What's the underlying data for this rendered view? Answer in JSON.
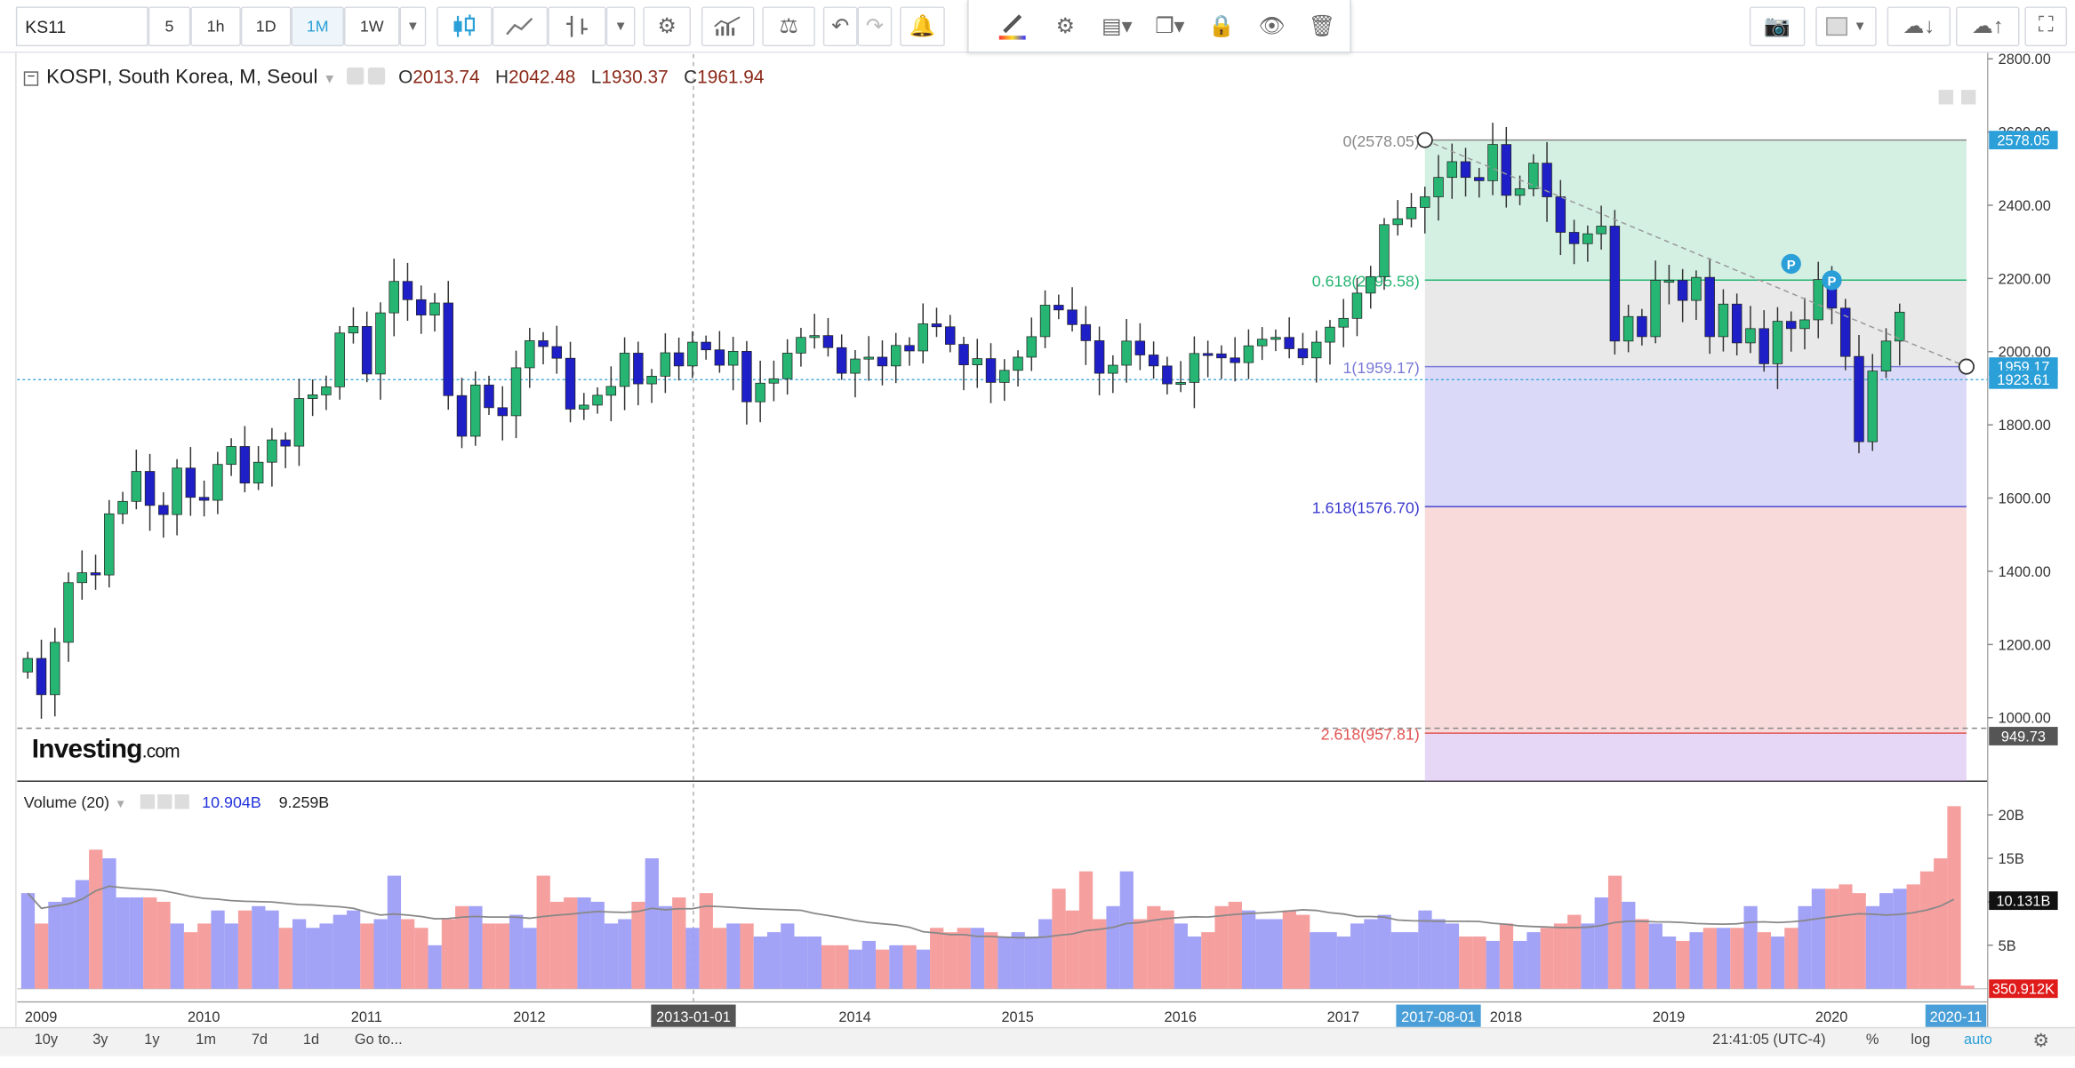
{
  "toolbar": {
    "symbol": "KS11",
    "intervals": [
      "5",
      "1h",
      "1D",
      "1M",
      "1W"
    ],
    "active_interval": "1M"
  },
  "legend": {
    "title": "KOSPI, South Korea, M, Seoul",
    "open_label": "O",
    "open": "2013.74",
    "high_label": "H",
    "high": "2042.48",
    "low_label": "L",
    "low": "1930.37",
    "close_label": "C",
    "close": "1961.94"
  },
  "volume_legend": {
    "title": "Volume (20)",
    "value1": "10.904B",
    "value2": "9.259B"
  },
  "logo": {
    "main": "Investing",
    "suffix": ".com"
  },
  "bottom": {
    "ranges": [
      "10y",
      "3y",
      "1y",
      "1m",
      "7d",
      "1d"
    ],
    "goto": "Go to...",
    "time": "21:41:05 (UTC-4)",
    "percent": "%",
    "log": "log",
    "auto": "auto"
  },
  "colors": {
    "up": "#26b572",
    "down": "#1f1fc8",
    "vol_up": "#f59a9a",
    "vol_down": "#9d9df5",
    "fib_top": "#26b572",
    "fib_mid": "#7b7bd9",
    "fib_low": "#e05555",
    "price_badge": "#2a9fd8"
  },
  "chart_data": {
    "type": "candlestick",
    "x_start": "2009-01",
    "x_step": "1 month",
    "ylim": [
      830,
      2800
    ],
    "price_ticks": [
      1000,
      1200,
      1400,
      1600,
      1800,
      2000,
      2200,
      2400,
      2600,
      2800
    ],
    "price_tick_labels": [
      "1000.00",
      "1200.00",
      "1400.00",
      "1600.00",
      "1800.00",
      "2000.00",
      "2200.00",
      "2400.00",
      "2600.00",
      "2800.00"
    ],
    "x_tick_labels": [
      {
        "label": "2009",
        "month": 0
      },
      {
        "label": "2010",
        "month": 12
      },
      {
        "label": "2011",
        "month": 24
      },
      {
        "label": "2012",
        "month": 36
      },
      {
        "label": "2013",
        "month": 48
      },
      {
        "label": "2014",
        "month": 60
      },
      {
        "label": "2015",
        "month": 72
      },
      {
        "label": "2016",
        "month": 84
      },
      {
        "label": "2017",
        "month": 96
      },
      {
        "label": "2018",
        "month": 108
      },
      {
        "label": "2019",
        "month": 120
      },
      {
        "label": "2020",
        "month": 132
      }
    ],
    "x_badges": [
      {
        "label": "2013-01-01",
        "month": 48
      },
      {
        "label": "2017-08-01",
        "month": 103
      },
      {
        "label": "2020-11",
        "month": 142
      }
    ],
    "closes": [
      1162,
      1063,
      1206,
      1369,
      1396,
      1390,
      1557,
      1591,
      1673,
      1580,
      1555,
      1682,
      1602,
      1594,
      1692,
      1741,
      1641,
      1698,
      1759,
      1742,
      1872,
      1882,
      1904,
      2051,
      2069,
      1939,
      2106,
      2192,
      2142,
      2100,
      2133,
      1880,
      1769,
      1909,
      1847,
      1825,
      1956,
      2030,
      2014,
      1982,
      1843,
      1854,
      1881,
      1905,
      1996,
      1912,
      1933,
      1997,
      1961,
      2026,
      2005,
      1963,
      2001,
      1863,
      1914,
      1926,
      1996,
      2039,
      2044,
      2011,
      1941,
      1980,
      1985,
      1961,
      2017,
      2002,
      2076,
      2068,
      2020,
      1964,
      1981,
      1916,
      1949,
      1985,
      2041,
      2127,
      2114,
      2074,
      2030,
      1941,
      1963,
      2029,
      1991,
      1961,
      1912,
      1916,
      1995,
      1994,
      1983,
      1970,
      2016,
      2034,
      2039,
      2008,
      1983,
      2026,
      2067,
      2091,
      2160,
      2205,
      2347,
      2363,
      2394,
      2423,
      2476,
      2519,
      2476,
      2467,
      2566,
      2427,
      2445,
      2515,
      2423,
      2326,
      2295,
      2322,
      2343,
      2029,
      2096,
      2041,
      2195,
      2195,
      2140,
      2203,
      2041,
      2130,
      2024,
      2063,
      1967,
      2083,
      2063,
      2087,
      2197,
      2119,
      1987,
      1754,
      1947,
      2029,
      2108
    ],
    "fib_levels": [
      {
        "ratio": "0",
        "price": 2578.05,
        "label": "0(2578.05)",
        "color": "#888888"
      },
      {
        "ratio": "0.618",
        "price": 2195.58,
        "label": "0.618(2195.58)",
        "color": "#26b572"
      },
      {
        "ratio": "1",
        "price": 1959.17,
        "label": "1(1959.17)",
        "color": "#7b7bd9"
      },
      {
        "ratio": "1.618",
        "price": 1576.7,
        "label": "1.618(1576.70)",
        "color": "#3b3bd0"
      },
      {
        "ratio": "2.618",
        "price": 957.81,
        "label": "2.618(957.81)",
        "color": "#e05555"
      }
    ],
    "fib_start_month": 103,
    "trend_line": {
      "from_month": 103,
      "from_price": 2578.05,
      "to_month": 142,
      "to_price": 1959.17
    },
    "pivot_markers": [
      {
        "label": "P",
        "month": 130,
        "price": 2240
      },
      {
        "label": "P",
        "month": 133,
        "price": 2195
      }
    ],
    "price_badges": [
      {
        "label": "2578.05",
        "price": 2578.05,
        "color": "#2a9fd8"
      },
      {
        "label": "1959.17",
        "price": 1959.17,
        "color": "#2a9fd8"
      },
      {
        "label": "1923.61",
        "price": 1923.61,
        "color": "#2a9fd8"
      },
      {
        "label": "949.73",
        "price": 949.73,
        "color": "#555555"
      }
    ],
    "crosshair_price": 1923.61,
    "crosshair_month": 48,
    "volume": {
      "ylim": [
        0,
        22
      ],
      "unit": "B",
      "ticks": [
        5,
        10,
        15,
        20
      ],
      "tick_labels": [
        "5B",
        "10B",
        "15B",
        "20B"
      ],
      "values": [
        11,
        7.5,
        10,
        10.5,
        12.5,
        16,
        15,
        10.5,
        10.5,
        10.5,
        10,
        7.5,
        6.5,
        7.5,
        9,
        7.5,
        9,
        9.5,
        9,
        7,
        8,
        7,
        7.5,
        8.5,
        9,
        7.5,
        8,
        13,
        8,
        7,
        5,
        8,
        9.5,
        9.5,
        7.5,
        7.5,
        8.5,
        7,
        13,
        10,
        10.5,
        10.5,
        10,
        7.5,
        8,
        10,
        15,
        9.5,
        10.5,
        7,
        11,
        7,
        7.5,
        7.5,
        6,
        6.5,
        7.5,
        6,
        6,
        5,
        5,
        4.5,
        5.5,
        4.5,
        5,
        5,
        4.5,
        7,
        6.5,
        7,
        7,
        6.5,
        6,
        6.5,
        6,
        8,
        11.5,
        9,
        13.5,
        8,
        9.5,
        13.5,
        8,
        9.5,
        9,
        7.5,
        6,
        6.5,
        9.5,
        10,
        9,
        8,
        8,
        9,
        8.5,
        6.5,
        6.5,
        6,
        7.5,
        8,
        8.5,
        6.5,
        6.5,
        9,
        8,
        7.5,
        6,
        6,
        5.5,
        7.5,
        5.5,
        6.5,
        7,
        7.5,
        8.5,
        7.5,
        10.5,
        13,
        10,
        8,
        7.5,
        6,
        5.5,
        6.5,
        7,
        7,
        7,
        9.5,
        6.5,
        6,
        7,
        9.5,
        11.5,
        11.5,
        12,
        11,
        9.5,
        11,
        11.5,
        12,
        13.5,
        15,
        21,
        0.35
      ],
      "ma_badge": "10.131B",
      "last_badge": "350.912K"
    }
  }
}
